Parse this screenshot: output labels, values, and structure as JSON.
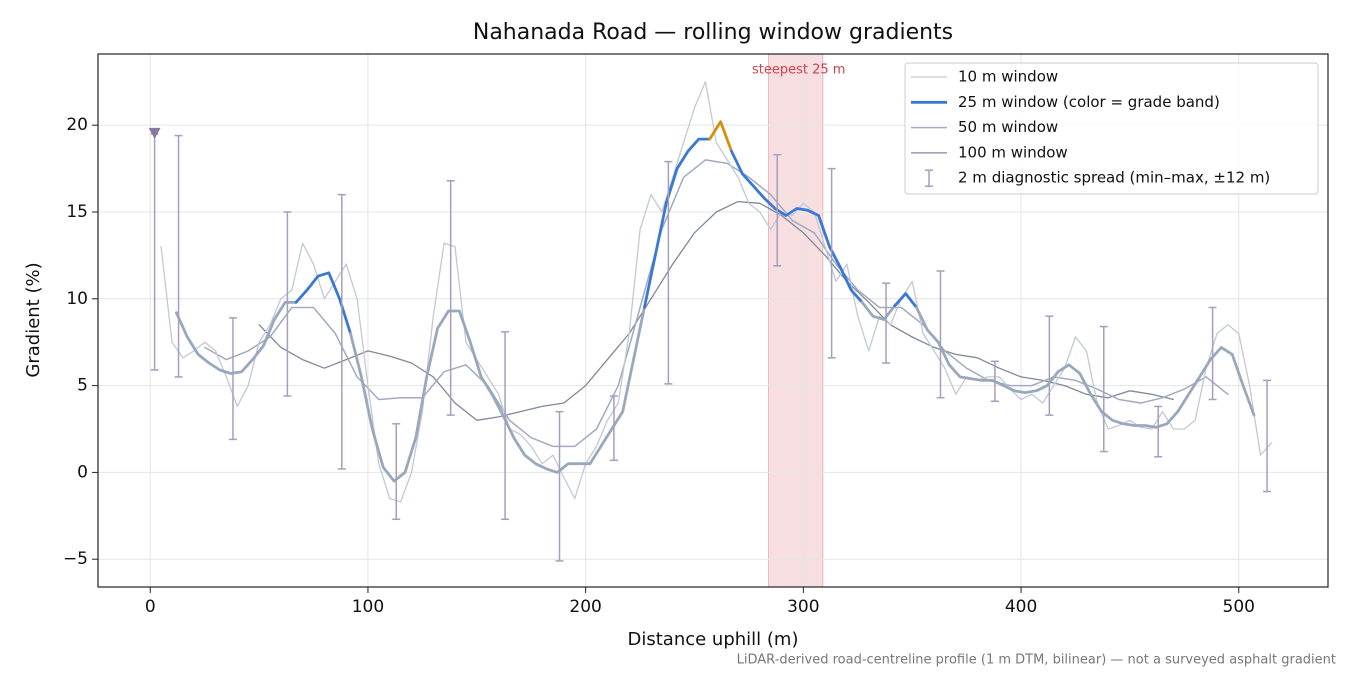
{
  "chart_data": {
    "type": "line",
    "title": "Nahanada Road — rolling window gradients",
    "xlabel": "Distance uphill (m)",
    "ylabel": "Gradient (%)",
    "footnote": "LiDAR-derived road-centreline profile (1 m DTM, bilinear) — not a surveyed asphalt gradient",
    "xlim": [
      -24,
      541
    ],
    "ylim": [
      -6.6,
      24.1
    ],
    "xticks": [
      0,
      100,
      200,
      300,
      400,
      500
    ],
    "yticks": [
      {
        "value": -5,
        "label": "−5"
      },
      0,
      5,
      10,
      15,
      20
    ],
    "grid": true,
    "legend": "upper right",
    "highlight": {
      "label": "steepest 25 m",
      "x": [
        284,
        309
      ],
      "color": "#d04050"
    },
    "series": [
      {
        "name": "10 m window",
        "color": "#c2c9d4",
        "width": 1.3,
        "x": [
          5,
          10,
          15,
          20,
          25,
          30,
          35,
          40,
          45,
          50,
          55,
          60,
          65,
          70,
          75,
          80,
          85,
          90,
          95,
          100,
          105,
          110,
          115,
          120,
          125,
          130,
          135,
          140,
          145,
          150,
          155,
          160,
          165,
          170,
          175,
          180,
          185,
          190,
          195,
          200,
          205,
          210,
          215,
          220,
          225,
          230,
          235,
          240,
          245,
          250,
          255,
          260,
          265,
          270,
          275,
          280,
          285,
          290,
          295,
          300,
          305,
          310,
          315,
          320,
          325,
          330,
          335,
          340,
          345,
          350,
          355,
          360,
          365,
          370,
          375,
          380,
          385,
          390,
          395,
          400,
          405,
          410,
          415,
          420,
          425,
          430,
          435,
          440,
          445,
          450,
          455,
          460,
          465,
          470,
          475,
          480,
          485,
          490,
          495,
          500,
          505,
          510,
          515
        ],
        "values": [
          13,
          7.5,
          6.6,
          7.0,
          7.5,
          7.0,
          5.5,
          3.8,
          5.0,
          7.5,
          8.5,
          10,
          10.5,
          13.2,
          12,
          10,
          11,
          12,
          10,
          5,
          0.5,
          -1.5,
          -1.7,
          0,
          3.5,
          9,
          13.2,
          13,
          7.5,
          6.5,
          5.5,
          4.5,
          2.5,
          2.2,
          1.5,
          0.5,
          1,
          -0.3,
          -1.5,
          0.5,
          1.5,
          3,
          4,
          8,
          14,
          16,
          15,
          17,
          19,
          21,
          22.5,
          19,
          18,
          17,
          15.5,
          15,
          14,
          15,
          14.8,
          15.5,
          15,
          13,
          11,
          12,
          9,
          7,
          9,
          8.5,
          10,
          11,
          8,
          7,
          6,
          4.5,
          5.5,
          5.3,
          5.5,
          5.5,
          4.8,
          4.2,
          4.5,
          4,
          5,
          6,
          7.8,
          7,
          4,
          2.5,
          2.7,
          3,
          2.6,
          2.5,
          3.5,
          2.5,
          2.5,
          3,
          6,
          8,
          8.5,
          8,
          5,
          1,
          1.7
        ]
      },
      {
        "name": "25 m window (color = grade band)",
        "color": "#3a78d4",
        "width": 2.8,
        "band_edges": [
          10,
          20
        ],
        "band_colors": [
          "#9aa8bc",
          "#3a78d4",
          "#d4900a"
        ],
        "x": [
          12,
          17,
          22,
          27,
          32,
          37,
          42,
          47,
          52,
          57,
          62,
          67,
          72,
          77,
          82,
          87,
          92,
          97,
          102,
          107,
          112,
          117,
          122,
          127,
          132,
          137,
          142,
          147,
          152,
          157,
          162,
          167,
          172,
          177,
          182,
          187,
          192,
          197,
          202,
          207,
          212,
          217,
          222,
          227,
          232,
          237,
          242,
          247,
          252,
          257,
          262,
          267,
          272,
          277,
          282,
          287,
          292,
          297,
          302,
          307,
          312,
          317,
          322,
          327,
          332,
          337,
          342,
          347,
          352,
          357,
          362,
          367,
          372,
          377,
          382,
          387,
          392,
          397,
          402,
          407,
          412,
          417,
          422,
          427,
          432,
          437,
          442,
          447,
          452,
          457,
          462,
          467,
          472,
          477,
          482,
          487,
          492,
          497,
          502,
          507
        ],
        "values": [
          9.2,
          7.8,
          6.8,
          6.3,
          5.9,
          5.7,
          5.8,
          6.5,
          7.3,
          8.8,
          9.8,
          9.8,
          10.5,
          11.3,
          11.5,
          10,
          8,
          5.5,
          2.5,
          0.3,
          -0.5,
          0,
          2,
          5.5,
          8.3,
          9.3,
          9.3,
          7.5,
          5.5,
          4.5,
          3.3,
          2,
          1,
          0.5,
          0.2,
          0,
          0.5,
          0.5,
          0.5,
          1.5,
          2.5,
          3.5,
          6.5,
          9.5,
          12.5,
          15.5,
          17.5,
          18.5,
          19.2,
          19.2,
          20.2,
          18.5,
          17.2,
          16.5,
          15.8,
          15.2,
          14.8,
          15.2,
          15.1,
          14.8,
          13,
          11.8,
          10.5,
          9.8,
          9,
          8.8,
          9.6,
          10.3,
          9.5,
          8.2,
          7.5,
          6.2,
          5.5,
          5.4,
          5.3,
          5.3,
          5,
          4.7,
          4.6,
          4.7,
          5,
          5.8,
          6.2,
          5.7,
          4.5,
          3.5,
          3,
          2.8,
          2.7,
          2.7,
          2.6,
          2.8,
          3.5,
          4.5,
          5.5,
          6.5,
          7.2,
          6.8,
          5,
          3.3
        ]
      },
      {
        "name": "50 m window",
        "color": "#a2aabe",
        "width": 1.5,
        "x": [
          25,
          35,
          45,
          55,
          65,
          75,
          85,
          95,
          105,
          115,
          125,
          135,
          145,
          155,
          165,
          175,
          185,
          195,
          205,
          215,
          225,
          235,
          245,
          255,
          265,
          275,
          285,
          295,
          305,
          315,
          325,
          335,
          345,
          355,
          365,
          375,
          385,
          395,
          405,
          415,
          425,
          435,
          445,
          455,
          465,
          475,
          485,
          495
        ],
        "values": [
          7.2,
          6.5,
          7,
          7.8,
          9.5,
          9.5,
          8,
          5.5,
          4.2,
          4.3,
          4.3,
          5.8,
          6.2,
          5,
          3,
          2,
          1.5,
          1.5,
          2.5,
          5,
          9.5,
          14,
          17,
          18,
          17.8,
          17,
          16,
          14.5,
          13.8,
          12,
          10.5,
          9.5,
          9.5,
          8.5,
          7,
          6,
          5.3,
          5,
          5,
          5.5,
          5.3,
          4.8,
          4.2,
          4,
          4.3,
          4.8,
          5.5,
          4.5
        ]
      },
      {
        "name": "100 m window",
        "color": "#80889a",
        "width": 1.3,
        "x": [
          50,
          60,
          70,
          80,
          90,
          100,
          110,
          120,
          130,
          140,
          150,
          160,
          170,
          180,
          190,
          200,
          210,
          220,
          230,
          240,
          250,
          260,
          270,
          280,
          290,
          300,
          310,
          320,
          330,
          340,
          350,
          360,
          370,
          380,
          390,
          400,
          410,
          420,
          430,
          440,
          450,
          460,
          470
        ],
        "values": [
          8.5,
          7.2,
          6.5,
          6,
          6.5,
          7,
          6.7,
          6.3,
          5.5,
          4,
          3,
          3.2,
          3.5,
          3.8,
          4,
          5,
          6.5,
          8,
          10,
          12,
          13.8,
          15,
          15.6,
          15.5,
          14.8,
          13.8,
          12.5,
          11,
          9.8,
          8.5,
          7.8,
          7.2,
          6.8,
          6.6,
          6,
          5.5,
          5.3,
          5,
          4.5,
          4.3,
          4.7,
          4.5,
          4.2
        ]
      }
    ],
    "errorbars": {
      "name": "2 m diagnostic spread (min–max, ±12 m)",
      "color": "#a49fc0",
      "x": [
        2,
        13,
        38,
        63,
        88,
        113,
        138,
        163,
        188,
        213,
        238,
        288,
        313,
        338,
        363,
        388,
        413,
        438,
        463,
        488,
        513
      ],
      "low": [
        5.9,
        5.5,
        1.9,
        4.4,
        0.2,
        -2.7,
        3.3,
        -2.7,
        -5.1,
        0.7,
        5.1,
        11.9,
        6.6,
        6.3,
        4.3,
        4.1,
        3.3,
        1.2,
        0.9,
        4.2,
        -1.1
      ],
      "high": [
        19.5,
        19.4,
        8.9,
        15.0,
        16.0,
        2.8,
        16.8,
        8.1,
        3.5,
        4.4,
        17.9,
        18.3,
        17.5,
        10.9,
        11.6,
        6.4,
        9.0,
        8.4,
        3.8,
        9.5,
        5.3
      ]
    },
    "marker": {
      "x": 2,
      "y": 19.5,
      "color": "#8878a0"
    }
  }
}
